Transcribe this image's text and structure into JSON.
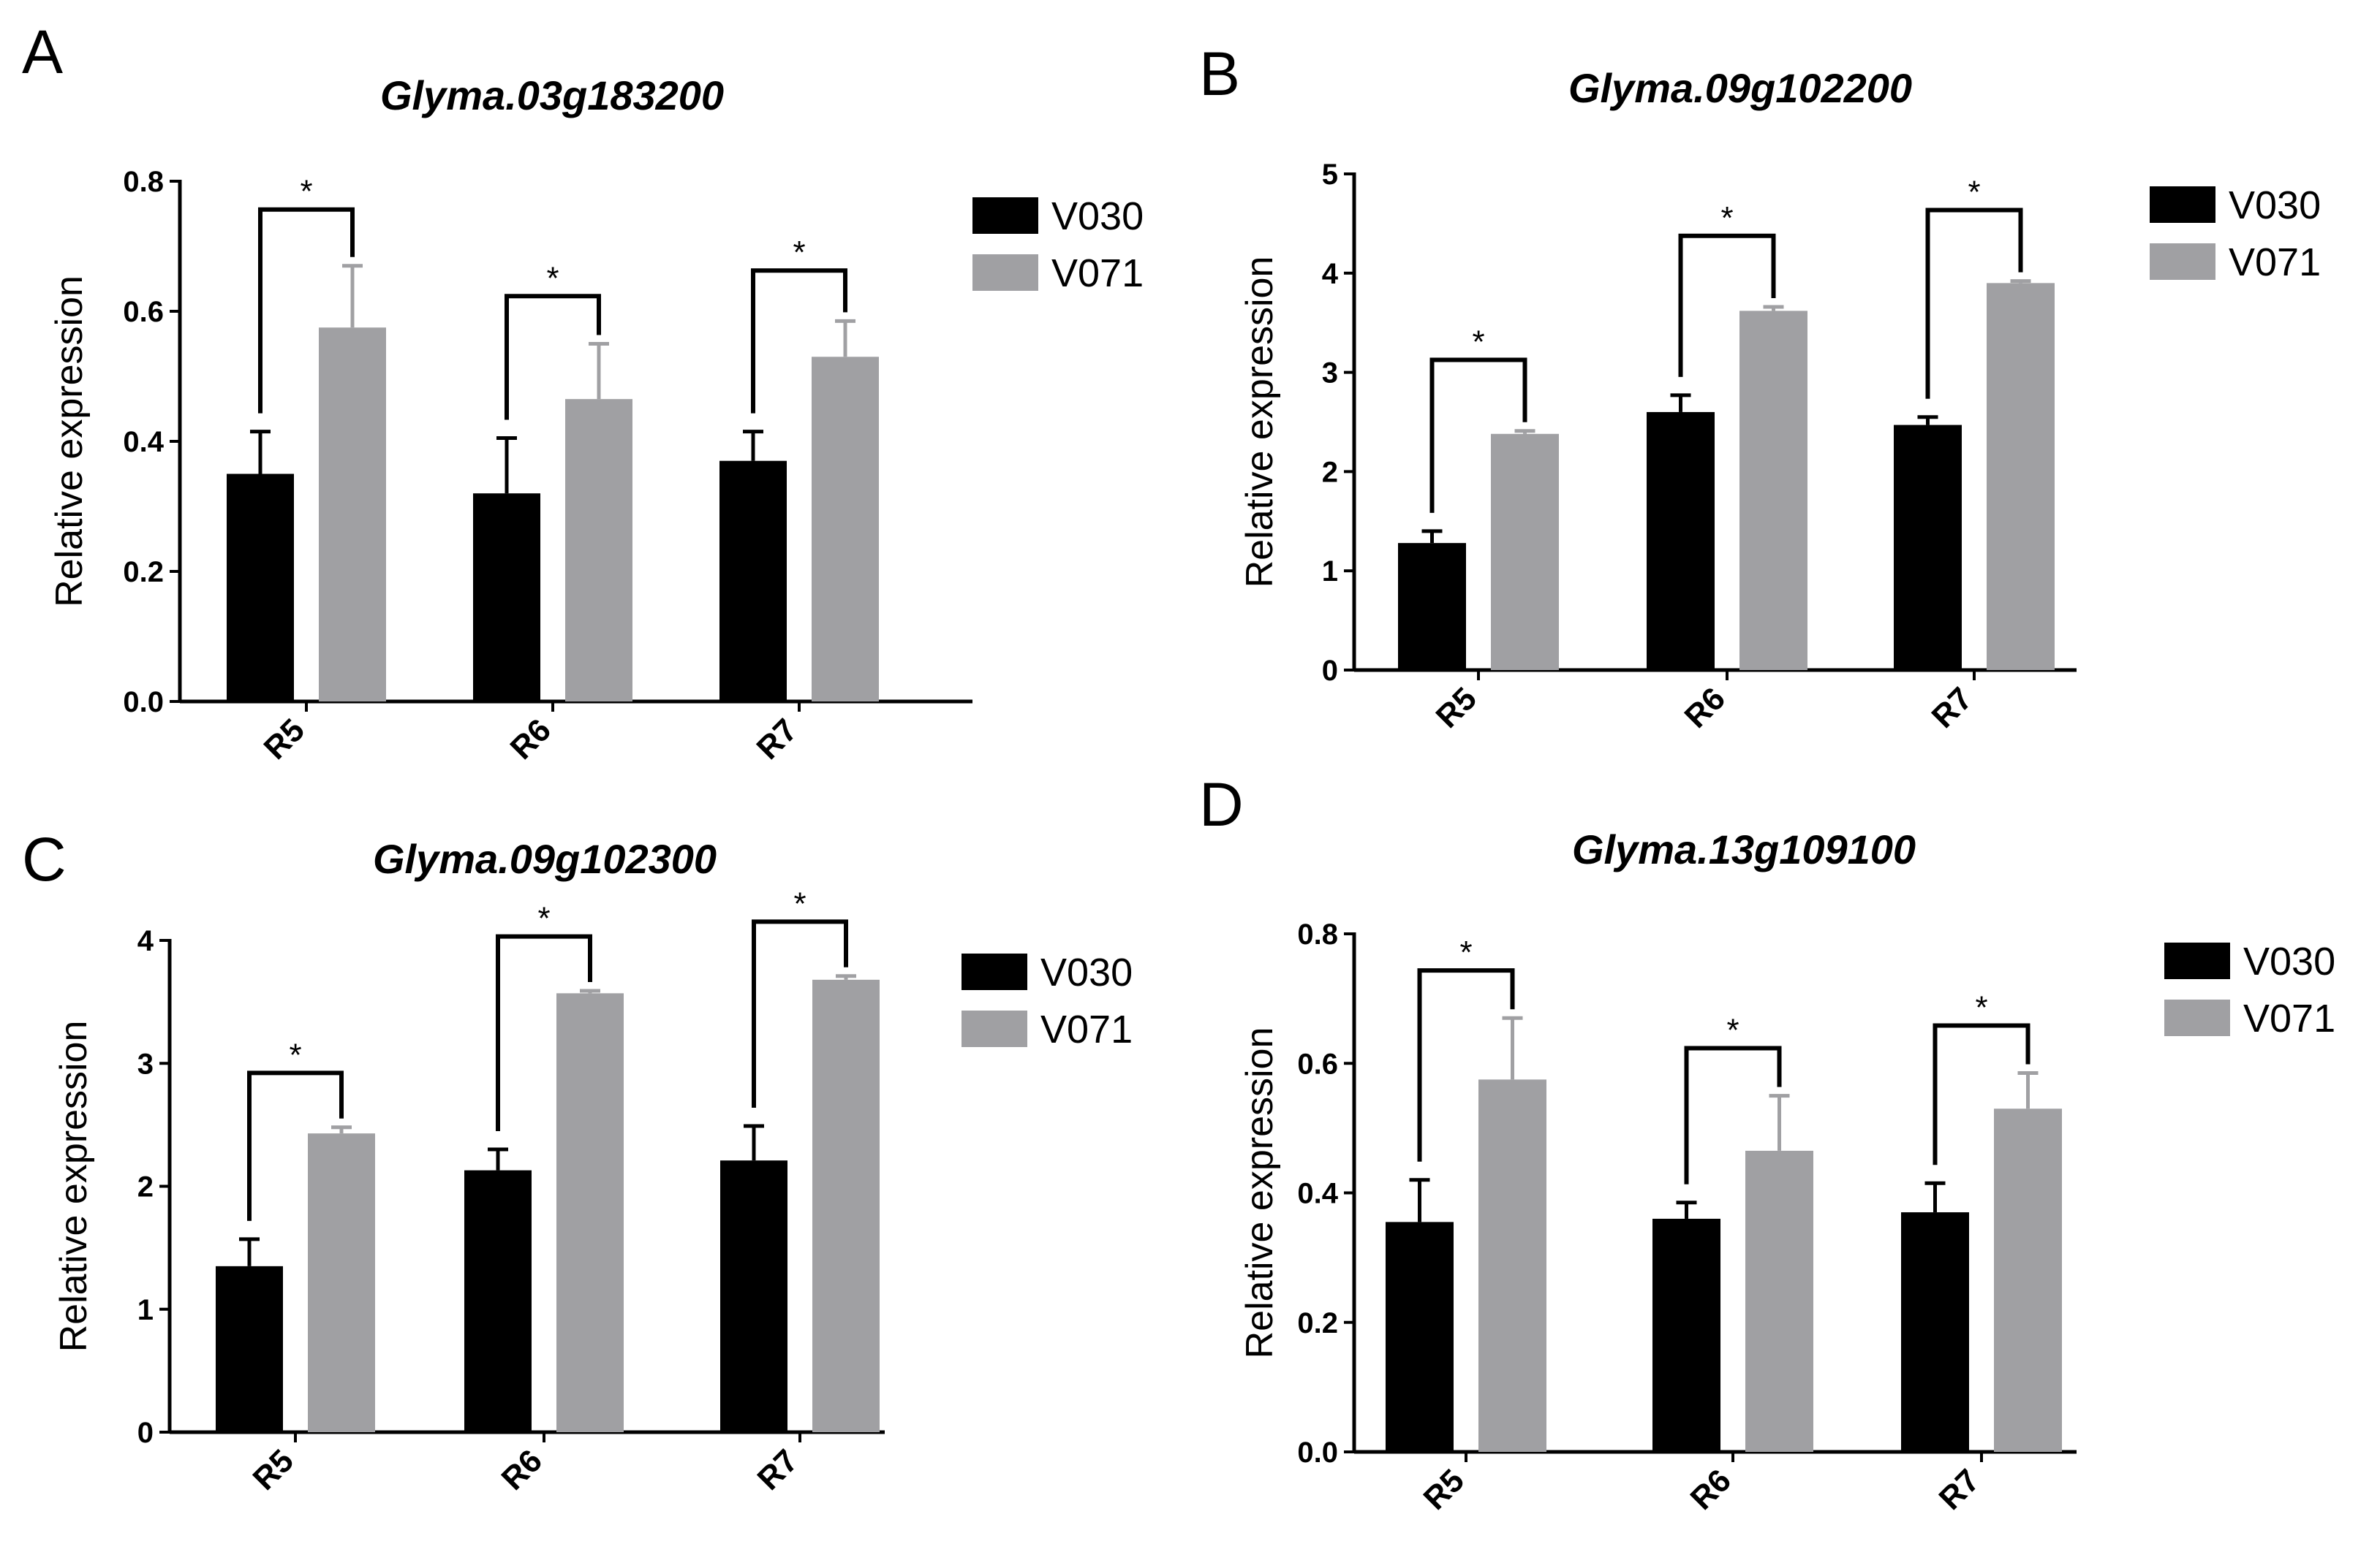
{
  "colors": {
    "V030": "#000000",
    "V071": "#a0a0a3",
    "axis": "#000000",
    "background": "#ffffff"
  },
  "chart_data": [
    {
      "panel": "A",
      "type": "bar",
      "title": "Glyma.03g183200",
      "xlabel": "",
      "ylabel": "Relative expression",
      "categories": [
        "R5",
        "R6",
        "R7"
      ],
      "ylim": [
        0,
        0.8
      ],
      "yticks": [
        "0.0",
        "0.2",
        "0.4",
        "0.6",
        "0.8"
      ],
      "series": [
        {
          "name": "V030",
          "values": [
            0.35,
            0.32,
            0.37
          ],
          "errors": [
            0.065,
            0.085,
            0.045
          ]
        },
        {
          "name": "V071",
          "values": [
            0.575,
            0.465,
            0.53
          ],
          "errors": [
            0.095,
            0.085,
            0.055
          ]
        }
      ],
      "significance": [
        "*",
        "*",
        "*"
      ],
      "legend": "right"
    },
    {
      "panel": "B",
      "type": "bar",
      "title": "Glyma.09g102200",
      "xlabel": "",
      "ylabel": "Relative expression",
      "categories": [
        "R5",
        "R6",
        "R7"
      ],
      "ylim": [
        0,
        5
      ],
      "yticks": [
        "0",
        "1",
        "2",
        "3",
        "4",
        "5"
      ],
      "series": [
        {
          "name": "V030",
          "values": [
            1.28,
            2.6,
            2.47
          ],
          "errors": [
            0.12,
            0.17,
            0.08
          ]
        },
        {
          "name": "V071",
          "values": [
            2.38,
            3.62,
            3.9
          ],
          "errors": [
            0.03,
            0.04,
            0.02
          ]
        }
      ],
      "significance": [
        "*",
        "*",
        "*"
      ],
      "legend": "right"
    },
    {
      "panel": "C",
      "type": "bar",
      "title": "Glyma.09g102300",
      "xlabel": "",
      "ylabel": "Relative expression",
      "categories": [
        "R5",
        "R6",
        "R7"
      ],
      "ylim": [
        0,
        4
      ],
      "yticks": [
        "0",
        "1",
        "2",
        "3",
        "4"
      ],
      "series": [
        {
          "name": "V030",
          "values": [
            1.35,
            2.13,
            2.21
          ],
          "errors": [
            0.22,
            0.17,
            0.28
          ]
        },
        {
          "name": "V071",
          "values": [
            2.43,
            3.57,
            3.68
          ],
          "errors": [
            0.05,
            0.02,
            0.03
          ]
        }
      ],
      "significance": [
        "*",
        "*",
        "*"
      ],
      "legend": "right"
    },
    {
      "panel": "D",
      "type": "bar",
      "title": "Glyma.13g109100",
      "xlabel": "",
      "ylabel": "Relative expression",
      "categories": [
        "R5",
        "R6",
        "R7"
      ],
      "ylim": [
        0,
        0.8
      ],
      "yticks": [
        "0.0",
        "0.2",
        "0.4",
        "0.6",
        "0.8"
      ],
      "series": [
        {
          "name": "V030",
          "values": [
            0.355,
            0.36,
            0.37
          ],
          "errors": [
            0.065,
            0.025,
            0.045
          ]
        },
        {
          "name": "V071",
          "values": [
            0.575,
            0.465,
            0.53
          ],
          "errors": [
            0.095,
            0.085,
            0.055
          ]
        }
      ],
      "significance": [
        "*",
        "*",
        "*"
      ],
      "legend": "right"
    }
  ]
}
